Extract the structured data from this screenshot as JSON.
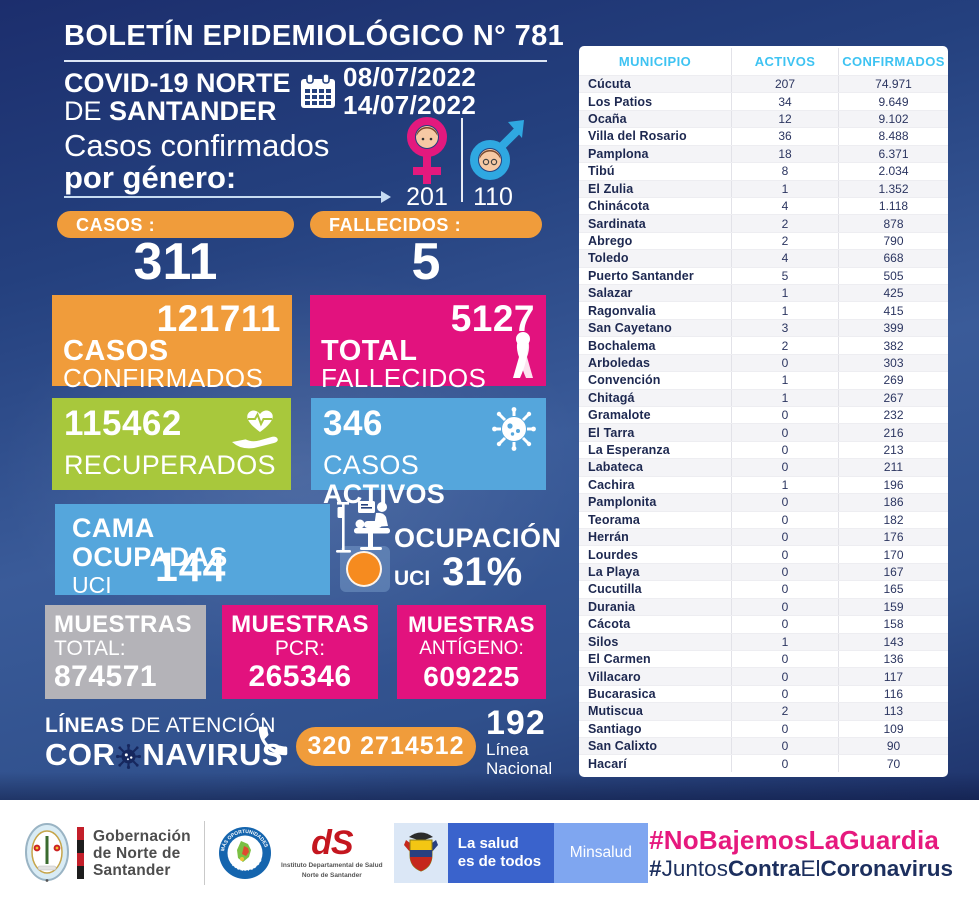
{
  "colors": {
    "orange": "#F09C3B",
    "magenta": "#E2127E",
    "green": "#A8C83C",
    "light_blue": "#55A6DC",
    "gray": "#B4B3B8",
    "table_header_blue": "#3EC3F2",
    "navy": "#1C2F5E",
    "hashtag_pink": "#E6197E",
    "uci_circle_orange": "#F68B1F"
  },
  "header": {
    "title": "BOLETÍN EPIDEMIOLÓGICO N°",
    "number": "781",
    "covid_line1": "COVID-19 NORTE",
    "covid_line2_light": "DE ",
    "covid_line2_bold": "SANTANDER",
    "date_from": "08/07/2022",
    "date_to": "14/07/2022",
    "gender_line1": "Casos confirmados",
    "gender_line2": "por género:",
    "female_count": "201",
    "male_count": "110"
  },
  "summary": {
    "casos_label": "CASOS :",
    "casos_value": "311",
    "fallecidos_label": "FALLECIDOS :",
    "fallecidos_value": "5",
    "confirmados_value": "121711",
    "confirmados_line1": "CASOS",
    "confirmados_line2": "CONFIRMADOS",
    "fallecidos_total_value": "5127",
    "fallecidos_total_line1": "TOTAL",
    "fallecidos_total_line2": "FALLECIDOS",
    "recuperados_value": "115462",
    "recuperados_label": "RECUPERADOS",
    "activos_value": "346",
    "activos_light": "CASOS ",
    "activos_bold": "ACTIVOS",
    "cama_line1": "CAMA OCUPADAS",
    "cama_line2": "UCI",
    "cama_value": "144",
    "ocupacion_line1": "OCUPACIÓN",
    "ocupacion_uci": "UCI",
    "ocupacion_value": "31%"
  },
  "muestras": {
    "total_title": "MUESTRAS",
    "total_sub": "TOTAL:",
    "total_value": "874571",
    "pcr_title": "MUESTRAS",
    "pcr_sub": "PCR:",
    "pcr_value": "265346",
    "antigeno_title": "MUESTRAS",
    "antigeno_sub": "ANTÍGENO:",
    "antigeno_value": "609225"
  },
  "hotline": {
    "lineas_bold": "LÍNEAS",
    "lineas_rest": " DE ATENCIÓN",
    "brand_start": "COR",
    "brand_end": "NAVIRUS",
    "phone": "320 2714512",
    "national_value": "192",
    "national_line1": "Línea",
    "national_line2": "Nacional"
  },
  "table": {
    "headers": [
      "MUNICIPIO",
      "ACTIVOS",
      "CONFIRMADOS"
    ],
    "rows": [
      [
        "Cúcuta",
        "207",
        "74.971"
      ],
      [
        "Los Patios",
        "34",
        "9.649"
      ],
      [
        "Ocaña",
        "12",
        "9.102"
      ],
      [
        "Villa del Rosario",
        "36",
        "8.488"
      ],
      [
        "Pamplona",
        "18",
        "6.371"
      ],
      [
        "Tibú",
        "8",
        "2.034"
      ],
      [
        "El Zulia",
        "1",
        "1.352"
      ],
      [
        "Chinácota",
        "4",
        "1.118"
      ],
      [
        "Sardinata",
        "2",
        "878"
      ],
      [
        "Abrego",
        "2",
        "790"
      ],
      [
        "Toledo",
        "4",
        "668"
      ],
      [
        "Puerto Santander",
        "5",
        "505"
      ],
      [
        "Salazar",
        "1",
        "425"
      ],
      [
        "Ragonvalia",
        "1",
        "415"
      ],
      [
        "San Cayetano",
        "3",
        "399"
      ],
      [
        "Bochalema",
        "2",
        "382"
      ],
      [
        "Arboledas",
        "0",
        "303"
      ],
      [
        "Convención",
        "1",
        "269"
      ],
      [
        "Chitagá",
        "1",
        "267"
      ],
      [
        "Gramalote",
        "0",
        "232"
      ],
      [
        "El Tarra",
        "0",
        "216"
      ],
      [
        "La Esperanza",
        "0",
        "213"
      ],
      [
        "Labateca",
        "0",
        "211"
      ],
      [
        "Cachira",
        "1",
        "196"
      ],
      [
        "Pamplonita",
        "0",
        "186"
      ],
      [
        "Teorama",
        "0",
        "182"
      ],
      [
        "Herrán",
        "0",
        "176"
      ],
      [
        "Lourdes",
        "0",
        "170"
      ],
      [
        "La Playa",
        "0",
        "167"
      ],
      [
        "Cucutilla",
        "0",
        "165"
      ],
      [
        "Durania",
        "0",
        "159"
      ],
      [
        "Cácota",
        "0",
        "158"
      ],
      [
        "Silos",
        "1",
        "143"
      ],
      [
        "El Carmen",
        "0",
        "136"
      ],
      [
        "Villacaro",
        "0",
        "117"
      ],
      [
        "Bucarasica",
        "0",
        "116"
      ],
      [
        "Mutiscua",
        "2",
        "113"
      ],
      [
        "Santiago",
        "0",
        "109"
      ],
      [
        "San Calixto",
        "0",
        "90"
      ],
      [
        "Hacarí",
        "0",
        "70"
      ]
    ]
  },
  "footer": {
    "gobernacion_lines": [
      "Gobernación",
      "de Norte de",
      "Santander"
    ],
    "circle_top": "MÁS OPORTUNIDADES",
    "circle_bottom": "PARA TODOS",
    "ids_logo": "dS",
    "ids_caption1": "Instituto Departamental de Salud",
    "ids_caption2": "Norte de Santander",
    "salud_line1": "La salud",
    "salud_line2": "es de todos",
    "minsalud": "Minsalud",
    "hashtag1": "#NoBajemosLaGuardia",
    "hashtag2_hash": "#",
    "hashtag2_a": "Juntos",
    "hashtag2_b": "Contra",
    "hashtag2_c": "El",
    "hashtag2_d": "Coronavirus"
  }
}
